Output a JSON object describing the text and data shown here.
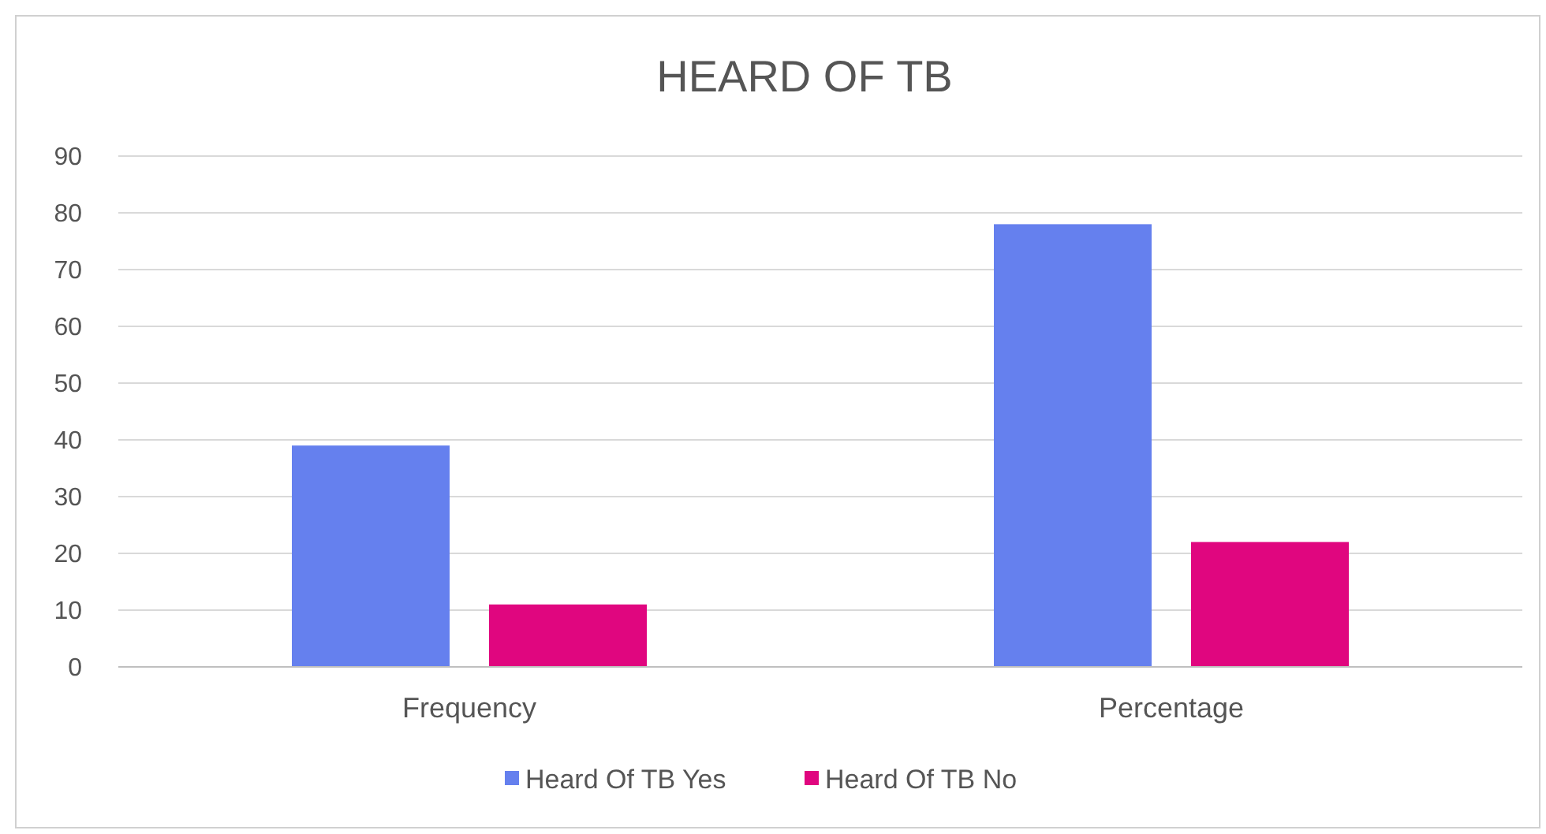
{
  "chart_data": {
    "type": "bar",
    "title": "HEARD OF TB",
    "categories": [
      "Frequency",
      "Percentage"
    ],
    "series": [
      {
        "name": "Heard Of TB Yes",
        "color": "#6580ee",
        "values": [
          39,
          78
        ]
      },
      {
        "name": "Heard Of TB No",
        "color": "#e0067f",
        "values": [
          11,
          22
        ]
      }
    ],
    "ylim": [
      0,
      90
    ],
    "yticks": [
      0,
      10,
      20,
      30,
      40,
      50,
      60,
      70,
      80,
      90
    ],
    "grid": "y",
    "legend": "bottom"
  }
}
